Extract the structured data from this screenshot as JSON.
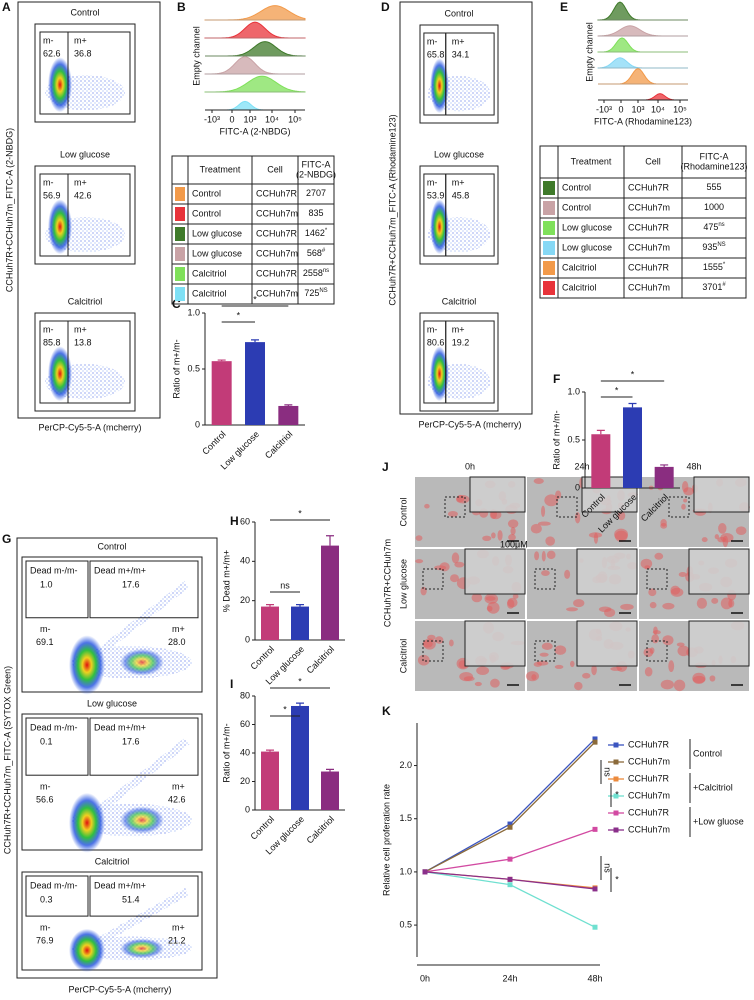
{
  "panel_labels": [
    "A",
    "B",
    "C",
    "D",
    "E",
    "F",
    "G",
    "H",
    "I",
    "J",
    "K"
  ],
  "flow_a": {
    "y_label": "CCHuh7R+CCHuh7m_FITC-A (2-NBDG)",
    "x_label": "PerCP-Cy5-5-A (mcherry)",
    "plots": [
      {
        "title": "Control",
        "gates": [
          {
            "name": "m-",
            "value": "62.6"
          },
          {
            "name": "m+",
            "value": "36.8"
          }
        ]
      },
      {
        "title": "Low glucose",
        "gates": [
          {
            "name": "m-",
            "value": "56.9"
          },
          {
            "name": "m+",
            "value": "42.6"
          }
        ]
      },
      {
        "title": "Calcitriol",
        "gates": [
          {
            "name": "m-",
            "value": "85.8"
          },
          {
            "name": "m+",
            "value": "13.8"
          }
        ]
      }
    ]
  },
  "flow_d": {
    "y_label": "CCHuh7R+CCHuh7m_FITC-A (Rhodamine123)",
    "x_label": "PerCP-Cy5-5-A (mcherry)",
    "plots": [
      {
        "title": "Control",
        "gates": [
          {
            "name": "m-",
            "value": "65.8"
          },
          {
            "name": "m+",
            "value": "34.1"
          }
        ]
      },
      {
        "title": "Low glucose",
        "gates": [
          {
            "name": "m-",
            "value": "53.9"
          },
          {
            "name": "m+",
            "value": "45.8"
          }
        ]
      },
      {
        "title": "Calcitriol",
        "gates": [
          {
            "name": "m-",
            "value": "80.6"
          },
          {
            "name": "m+",
            "value": "19.2"
          }
        ]
      }
    ]
  },
  "flow_g": {
    "y_label": "CCHuh7R+CCHuh7m_FITC-A (SYTOX Green)",
    "x_label": "PerCP-Cy5-5-A (mcherry)",
    "plots": [
      {
        "title": "Control",
        "gates": [
          {
            "name": "Dead m-/m-",
            "value": "1.0"
          },
          {
            "name": "Dead m+/m+",
            "value": "17.6"
          },
          {
            "name": "m-",
            "value": "69.1"
          },
          {
            "name": "m+",
            "value": "28.0"
          }
        ]
      },
      {
        "title": "Low glucose",
        "gates": [
          {
            "name": "Dead m-/m-",
            "value": "0.1"
          },
          {
            "name": "Dead m+/m+",
            "value": "17.6"
          },
          {
            "name": "m-",
            "value": "56.6"
          },
          {
            "name": "m+",
            "value": "42.6"
          }
        ]
      },
      {
        "title": "Calcitriol",
        "gates": [
          {
            "name": "Dead m-/m-",
            "value": "0.3"
          },
          {
            "name": "Dead m+/m+",
            "value": "51.4"
          },
          {
            "name": "m-",
            "value": "76.9"
          },
          {
            "name": "m+",
            "value": "21.2"
          }
        ]
      }
    ]
  },
  "histogram_b": {
    "y_label": "Empty channel",
    "x_label": "FITC-A (2-NBDG)",
    "x_ticks": [
      "-10³",
      "0",
      "10³",
      "10⁴",
      "10⁵"
    ]
  },
  "histogram_e": {
    "y_label": "Empty channel",
    "x_label": "FITC-A (Rhodamine123)",
    "x_ticks": [
      "-10³",
      "0",
      "10³",
      "10⁴",
      "10⁵"
    ]
  },
  "table_b": {
    "header": {
      "treatment": "Treatment",
      "cell": "Cell",
      "value": [
        "FITC-A",
        "(2-NBDG)"
      ]
    },
    "rows": [
      {
        "color": "#f29a4a",
        "treatment": "Control",
        "cell": "CCHuh7R",
        "value": "2707"
      },
      {
        "color": "#e8333a",
        "treatment": "Control",
        "cell": "CCHuh7m",
        "value": "835"
      },
      {
        "color": "#3f7a2a",
        "treatment": "Low glucose",
        "cell": "CCHuh7R",
        "value": "1462",
        "mark": "*"
      },
      {
        "color": "#c9a3a6",
        "treatment": "Low glucose",
        "cell": "CCHuh7m",
        "value": "568",
        "mark": "#"
      },
      {
        "color": "#7fe05a",
        "treatment": "Calcitriol",
        "cell": "CCHuh7R",
        "value": "2558",
        "mark": "ns"
      },
      {
        "color": "#7ee0f5",
        "treatment": "Calcitriol",
        "cell": "CCHuh7m",
        "value": "725",
        "mark": "NS"
      }
    ]
  },
  "table_e": {
    "header": {
      "treatment": "Treatment",
      "cell": "Cell",
      "value": [
        "FITC-A",
        "(Rhodamine123)"
      ]
    },
    "rows": [
      {
        "color": "#3f7a2a",
        "treatment": "Control",
        "cell": "CCHuh7R",
        "value": "555"
      },
      {
        "color": "#c9a3a6",
        "treatment": "Control",
        "cell": "CCHuh7m",
        "value": "1000"
      },
      {
        "color": "#7fe05a",
        "treatment": "Low glucose",
        "cell": "CCHuh7R",
        "value": "475",
        "mark": "ns"
      },
      {
        "color": "#86d8f5",
        "treatment": "Low glucose",
        "cell": "CCHuh7m",
        "value": "935",
        "mark": "NS"
      },
      {
        "color": "#f29a4a",
        "treatment": "Calcitriol",
        "cell": "CCHuh7R",
        "value": "1555",
        "mark": "*"
      },
      {
        "color": "#e8333a",
        "treatment": "Calcitriol",
        "cell": "CCHuh7m",
        "value": "3701",
        "mark": "#"
      }
    ]
  },
  "images_j": {
    "columns": [
      "0h",
      "24h",
      "48h"
    ],
    "rows": [
      "Control",
      "Low glucose",
      "Calcitriol"
    ],
    "y_label": "CCHuh7R+CCHuh7m",
    "scale_label": "100μM"
  },
  "chart_data": [
    {
      "type": "bar",
      "y_label": "Ratio of m+/m-",
      "categories": [
        "Control",
        "Low glucose",
        "Calcitriol"
      ],
      "values": [
        0.57,
        0.74,
        0.17
      ],
      "errors": [
        0.01,
        0.02,
        0.01
      ],
      "colors": [
        "#c23b78",
        "#2c3cb3",
        "#8a2d80"
      ],
      "ylim": [
        0,
        1
      ],
      "yticks": [
        0,
        0.5,
        {
          "value": 1,
          "label": "1.0"
        }
      ],
      "annotations": [
        "*",
        "*"
      ]
    },
    {
      "type": "bar",
      "y_label": "Ratio of m+/m-",
      "categories": [
        "Control",
        "Low glucose",
        "Calcitriol"
      ],
      "values": [
        0.56,
        0.84,
        0.22
      ],
      "errors": [
        0.04,
        0.04,
        0.02
      ],
      "colors": [
        "#c23b78",
        "#2c3cb3",
        "#8a2d80"
      ],
      "ylim": [
        0,
        1
      ],
      "yticks": [
        0,
        0.5,
        {
          "value": 1,
          "label": "1.0"
        }
      ],
      "annotations": [
        "*",
        "*"
      ]
    },
    {
      "type": "bar",
      "y_label": "% Dead m+/m+",
      "categories": [
        "Control",
        "Low glucose",
        "Calcitriol"
      ],
      "values": [
        17,
        17,
        48
      ],
      "errors": [
        1,
        1,
        5
      ],
      "colors": [
        "#c23b78",
        "#2c3cb3",
        "#8a2d80"
      ],
      "ylim": [
        0,
        60
      ],
      "yticks": [
        0,
        20,
        40,
        60
      ],
      "annotations": [
        "*",
        "ns"
      ]
    },
    {
      "type": "bar",
      "y_label": "Ratio of m+/m-",
      "categories": [
        "Control",
        "Low glucose",
        "Calcitriol"
      ],
      "values": [
        41,
        73,
        27
      ],
      "errors": [
        1,
        2,
        1.5
      ],
      "colors": [
        "#c23b78",
        "#2c3cb3",
        "#8a2d80"
      ],
      "ylim": [
        0,
        80
      ],
      "yticks": [
        0,
        20,
        40,
        60,
        80
      ],
      "annotations": [
        "*",
        "*"
      ]
    },
    {
      "type": "line",
      "y_label": "Relative cell proferation rate",
      "categories": [
        "0h",
        "24h",
        "48h"
      ],
      "ylim": [
        0.2,
        2.4
      ],
      "yticks": [
        0.5,
        {
          "value": 1,
          "label": "1.0"
        },
        1.5,
        {
          "value": 2,
          "label": "2.0"
        }
      ],
      "series": [
        {
          "name": "CCHuh7R",
          "color": "#3b55c0",
          "values": [
            1,
            1.45,
            2.25
          ]
        },
        {
          "name": "CCHuh7m",
          "color": "#8b6a3a",
          "values": [
            1,
            1.42,
            2.22
          ]
        },
        {
          "name": "CCHuh7R",
          "color": "#ec8a3c",
          "values": [
            1,
            0.93,
            0.85
          ]
        },
        {
          "name": "CCHuh7m",
          "color": "#6fe0d0",
          "values": [
            1,
            0.88,
            0.48
          ]
        },
        {
          "name": "CCHuh7R",
          "color": "#d24aa2",
          "values": [
            1,
            1.12,
            1.4
          ]
        },
        {
          "name": "CCHuh7m",
          "color": "#8a2f8a",
          "values": [
            1,
            0.93,
            0.84
          ]
        }
      ],
      "legend_groups": [
        "Control",
        "+Calcitriol",
        "+Low gluose"
      ],
      "annotations": [
        "ns",
        "*",
        "ns",
        "*"
      ]
    }
  ]
}
